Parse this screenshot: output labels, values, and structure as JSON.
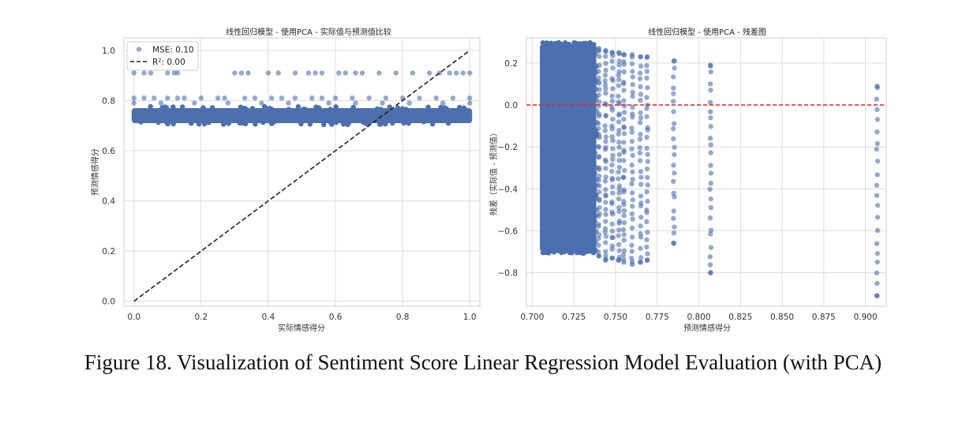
{
  "figure": {
    "caption": "Figure 18. Visualization of Sentiment Score Linear Regression Model Evaluation (with PCA)"
  },
  "colors": {
    "points": "#4c6fae",
    "identity_line": "#222222",
    "zero_line": "#d62728"
  },
  "chart_data": [
    {
      "type": "scatter",
      "title": "线性回归模型 - 使用PCA - 实际值与预测值比较",
      "xlabel": "实际情感得分",
      "ylabel": "预测情感得分",
      "xlim": [
        -0.03,
        1.03
      ],
      "ylim": [
        -0.02,
        1.05
      ],
      "xticks": [
        "0.0",
        "0.2",
        "0.4",
        "0.6",
        "0.8",
        "1.0"
      ],
      "yticks": [
        "0.0",
        "0.2",
        "0.4",
        "0.6",
        "0.8",
        "1.0"
      ],
      "grid": true,
      "legend": {
        "placement": "top-left",
        "entries": [
          {
            "label": "MSE: 0.10",
            "marker": "point"
          },
          {
            "label": "R²: 0.00",
            "marker": "dashed-line"
          }
        ]
      },
      "reference_line": {
        "type": "identity",
        "x": [
          0,
          1
        ],
        "y": [
          0,
          1
        ],
        "style": "dashed"
      },
      "dense_band": {
        "x_range": [
          0.0,
          1.0
        ],
        "y_range": [
          0.71,
          0.77
        ]
      },
      "points": [
        {
          "x": 0.0,
          "y": 0.91
        },
        {
          "x": 0.03,
          "y": 0.91
        },
        {
          "x": 0.05,
          "y": 0.91
        },
        {
          "x": 0.1,
          "y": 0.91
        },
        {
          "x": 0.12,
          "y": 0.91
        },
        {
          "x": 0.13,
          "y": 0.91
        },
        {
          "x": 0.3,
          "y": 0.91
        },
        {
          "x": 0.32,
          "y": 0.91
        },
        {
          "x": 0.34,
          "y": 0.91
        },
        {
          "x": 0.4,
          "y": 0.91
        },
        {
          "x": 0.43,
          "y": 0.91
        },
        {
          "x": 0.48,
          "y": 0.91
        },
        {
          "x": 0.52,
          "y": 0.91
        },
        {
          "x": 0.54,
          "y": 0.91
        },
        {
          "x": 0.56,
          "y": 0.91
        },
        {
          "x": 0.61,
          "y": 0.91
        },
        {
          "x": 0.63,
          "y": 0.91
        },
        {
          "x": 0.66,
          "y": 0.91
        },
        {
          "x": 0.68,
          "y": 0.91
        },
        {
          "x": 0.73,
          "y": 0.91
        },
        {
          "x": 0.78,
          "y": 0.91
        },
        {
          "x": 0.83,
          "y": 0.91
        },
        {
          "x": 0.88,
          "y": 0.91
        },
        {
          "x": 0.91,
          "y": 0.91
        },
        {
          "x": 0.94,
          "y": 0.91
        },
        {
          "x": 0.96,
          "y": 0.91
        },
        {
          "x": 0.98,
          "y": 0.91
        },
        {
          "x": 1.0,
          "y": 0.91
        },
        {
          "x": 0.0,
          "y": 0.81
        },
        {
          "x": 0.03,
          "y": 0.81
        },
        {
          "x": 0.06,
          "y": 0.81
        },
        {
          "x": 0.1,
          "y": 0.81
        },
        {
          "x": 0.13,
          "y": 0.81
        },
        {
          "x": 0.15,
          "y": 0.81
        },
        {
          "x": 0.2,
          "y": 0.81
        },
        {
          "x": 0.25,
          "y": 0.81
        },
        {
          "x": 0.27,
          "y": 0.81
        },
        {
          "x": 0.33,
          "y": 0.81
        },
        {
          "x": 0.36,
          "y": 0.81
        },
        {
          "x": 0.41,
          "y": 0.81
        },
        {
          "x": 0.44,
          "y": 0.81
        },
        {
          "x": 0.48,
          "y": 0.81
        },
        {
          "x": 0.53,
          "y": 0.81
        },
        {
          "x": 0.56,
          "y": 0.81
        },
        {
          "x": 0.6,
          "y": 0.81
        },
        {
          "x": 0.65,
          "y": 0.81
        },
        {
          "x": 0.7,
          "y": 0.81
        },
        {
          "x": 0.75,
          "y": 0.81
        },
        {
          "x": 0.8,
          "y": 0.81
        },
        {
          "x": 0.85,
          "y": 0.81
        },
        {
          "x": 0.9,
          "y": 0.81
        },
        {
          "x": 0.95,
          "y": 0.81
        },
        {
          "x": 1.0,
          "y": 0.81
        },
        {
          "x": 0.0,
          "y": 0.79
        },
        {
          "x": 0.08,
          "y": 0.79
        },
        {
          "x": 0.18,
          "y": 0.79
        },
        {
          "x": 0.28,
          "y": 0.79
        },
        {
          "x": 0.38,
          "y": 0.79
        },
        {
          "x": 0.46,
          "y": 0.79
        },
        {
          "x": 0.58,
          "y": 0.79
        },
        {
          "x": 0.66,
          "y": 0.79
        },
        {
          "x": 0.74,
          "y": 0.79
        },
        {
          "x": 0.82,
          "y": 0.79
        },
        {
          "x": 0.92,
          "y": 0.79
        },
        {
          "x": 1.0,
          "y": 0.79
        }
      ]
    },
    {
      "type": "scatter",
      "title": "线性回归模型 - 使用PCA - 残差图",
      "xlabel": "预测情感得分",
      "ylabel": "残差（实际值 - 预测值）",
      "xlim": [
        0.6965,
        0.9125
      ],
      "ylim": [
        -0.96,
        0.32
      ],
      "xticks": [
        "0.700",
        "0.725",
        "0.750",
        "0.775",
        "0.800",
        "0.825",
        "0.850",
        "0.875",
        "0.900"
      ],
      "yticks": [
        "0.2",
        "0.0",
        "−0.2",
        "−0.4",
        "−0.6",
        "−0.8"
      ],
      "grid": true,
      "reference_line": {
        "type": "horizontal",
        "y": 0.0,
        "style": "dashed"
      },
      "dense_band": {
        "x_range": [
          0.706,
          0.737
        ],
        "y_range": [
          -0.7,
          0.29
        ]
      },
      "column_points": [
        {
          "x": 0.74,
          "y_min": -0.72,
          "y_max": 0.27,
          "count": 40
        },
        {
          "x": 0.744,
          "y_min": -0.74,
          "y_max": 0.26,
          "count": 38
        },
        {
          "x": 0.748,
          "y_min": -0.73,
          "y_max": 0.25,
          "count": 36
        },
        {
          "x": 0.752,
          "y_min": -0.74,
          "y_max": 0.25,
          "count": 36
        },
        {
          "x": 0.755,
          "y_min": -0.75,
          "y_max": 0.24,
          "count": 34
        },
        {
          "x": 0.76,
          "y_min": -0.76,
          "y_max": 0.24,
          "count": 30
        },
        {
          "x": 0.765,
          "y_min": -0.75,
          "y_max": 0.23,
          "count": 28
        },
        {
          "x": 0.769,
          "y_min": -0.74,
          "y_max": 0.23,
          "count": 28
        },
        {
          "x": 0.785,
          "y_min": -0.66,
          "y_max": 0.21,
          "count": 22
        },
        {
          "x": 0.807,
          "y_min": -0.8,
          "y_max": 0.19,
          "count": 24
        },
        {
          "x": 0.907,
          "y_min": -0.91,
          "y_max": 0.09,
          "count": 20
        }
      ]
    }
  ]
}
